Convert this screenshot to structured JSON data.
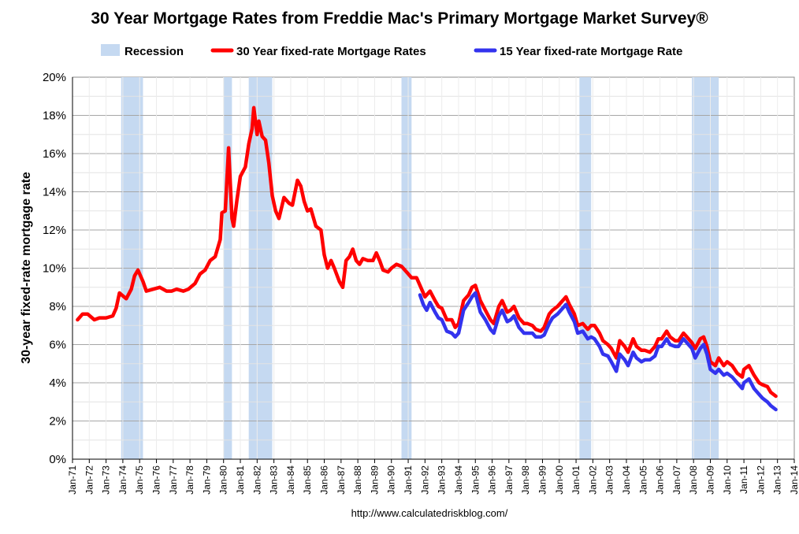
{
  "chart_data": {
    "type": "line",
    "title": "30 Year Mortgage Rates from Freddie Mac's Primary Mortgage Market Survey®",
    "ylabel": "30-year fixed-rate mortgage rate",
    "source": "http://www.calculatedriskblog.com/",
    "ylim": [
      0,
      20
    ],
    "y_ticks": [
      "0%",
      "2%",
      "4%",
      "6%",
      "8%",
      "10%",
      "12%",
      "14%",
      "16%",
      "18%",
      "20%"
    ],
    "x_range": [
      1971.0,
      2014.0
    ],
    "x_ticks": [
      "Jan-71",
      "Jan-72",
      "Jan-73",
      "Jan-74",
      "Jan-75",
      "Jan-76",
      "Jan-77",
      "Jan-78",
      "Jan-79",
      "Jan-80",
      "Jan-81",
      "Jan-82",
      "Jan-83",
      "Jan-84",
      "Jan-85",
      "Jan-86",
      "Jan-87",
      "Jan-88",
      "Jan-89",
      "Jan-90",
      "Jan-91",
      "Jan-92",
      "Jan-93",
      "Jan-94",
      "Jan-95",
      "Jan-96",
      "Jan-97",
      "Jan-98",
      "Jan-99",
      "Jan-00",
      "Jan-01",
      "Jan-02",
      "Jan-03",
      "Jan-04",
      "Jan-05",
      "Jan-06",
      "Jan-07",
      "Jan-08",
      "Jan-09",
      "Jan-10",
      "Jan-11",
      "Jan-12",
      "Jan-13",
      "Jan-14"
    ],
    "grid": true,
    "legend_position": "top",
    "legend": [
      {
        "label": "Recession",
        "color": "#c5d9f1",
        "kind": "area"
      },
      {
        "label": "30 Year fixed-rate Mortgage Rates",
        "color": "#ff0000",
        "kind": "line"
      },
      {
        "label": "15 Year fixed-rate Mortgage Rate",
        "color": "#3333ee",
        "kind": "line"
      }
    ],
    "recessions": [
      {
        "start": 1973.9,
        "end": 1975.2
      },
      {
        "start": 1980.0,
        "end": 1980.5
      },
      {
        "start": 1981.5,
        "end": 1982.9
      },
      {
        "start": 1990.6,
        "end": 1991.2
      },
      {
        "start": 2001.2,
        "end": 2001.9
      },
      {
        "start": 2007.9,
        "end": 2009.5
      }
    ],
    "series": [
      {
        "name": "30 Year fixed-rate Mortgage Rates",
        "color": "#ff0000",
        "points": [
          [
            1971.3,
            7.3
          ],
          [
            1971.6,
            7.6
          ],
          [
            1971.9,
            7.6
          ],
          [
            1972.3,
            7.3
          ],
          [
            1972.6,
            7.4
          ],
          [
            1973.0,
            7.4
          ],
          [
            1973.4,
            7.5
          ],
          [
            1973.6,
            7.9
          ],
          [
            1973.8,
            8.7
          ],
          [
            1974.2,
            8.4
          ],
          [
            1974.5,
            8.9
          ],
          [
            1974.7,
            9.6
          ],
          [
            1974.9,
            9.9
          ],
          [
            1975.2,
            9.3
          ],
          [
            1975.4,
            8.8
          ],
          [
            1975.8,
            8.9
          ],
          [
            1976.2,
            9.0
          ],
          [
            1976.6,
            8.8
          ],
          [
            1976.9,
            8.8
          ],
          [
            1977.2,
            8.9
          ],
          [
            1977.6,
            8.8
          ],
          [
            1977.9,
            8.9
          ],
          [
            1978.3,
            9.2
          ],
          [
            1978.6,
            9.7
          ],
          [
            1978.9,
            9.9
          ],
          [
            1979.2,
            10.4
          ],
          [
            1979.5,
            10.6
          ],
          [
            1979.8,
            11.5
          ],
          [
            1979.9,
            12.9
          ],
          [
            1980.1,
            13.0
          ],
          [
            1980.3,
            16.3
          ],
          [
            1980.5,
            12.6
          ],
          [
            1980.6,
            12.2
          ],
          [
            1980.8,
            13.6
          ],
          [
            1981.0,
            14.8
          ],
          [
            1981.3,
            15.3
          ],
          [
            1981.5,
            16.5
          ],
          [
            1981.7,
            17.3
          ],
          [
            1981.8,
            18.4
          ],
          [
            1982.0,
            17.0
          ],
          [
            1982.1,
            17.7
          ],
          [
            1982.3,
            16.9
          ],
          [
            1982.5,
            16.7
          ],
          [
            1982.7,
            15.5
          ],
          [
            1982.9,
            13.8
          ],
          [
            1983.1,
            13.0
          ],
          [
            1983.3,
            12.6
          ],
          [
            1983.6,
            13.7
          ],
          [
            1983.9,
            13.4
          ],
          [
            1984.1,
            13.3
          ],
          [
            1984.4,
            14.6
          ],
          [
            1984.6,
            14.3
          ],
          [
            1984.8,
            13.5
          ],
          [
            1985.0,
            13.0
          ],
          [
            1985.2,
            13.1
          ],
          [
            1985.5,
            12.2
          ],
          [
            1985.8,
            12.0
          ],
          [
            1986.0,
            10.7
          ],
          [
            1986.2,
            10.0
          ],
          [
            1986.4,
            10.4
          ],
          [
            1986.6,
            10.0
          ],
          [
            1986.9,
            9.3
          ],
          [
            1987.1,
            9.0
          ],
          [
            1987.3,
            10.4
          ],
          [
            1987.5,
            10.6
          ],
          [
            1987.7,
            11.0
          ],
          [
            1987.9,
            10.4
          ],
          [
            1988.1,
            10.2
          ],
          [
            1988.3,
            10.5
          ],
          [
            1988.6,
            10.4
          ],
          [
            1988.9,
            10.4
          ],
          [
            1989.1,
            10.8
          ],
          [
            1989.3,
            10.4
          ],
          [
            1989.5,
            9.9
          ],
          [
            1989.8,
            9.8
          ],
          [
            1990.0,
            10.0
          ],
          [
            1990.3,
            10.2
          ],
          [
            1990.6,
            10.1
          ],
          [
            1990.9,
            9.8
          ],
          [
            1991.2,
            9.5
          ],
          [
            1991.5,
            9.5
          ],
          [
            1991.8,
            8.9
          ],
          [
            1992.0,
            8.5
          ],
          [
            1992.3,
            8.8
          ],
          [
            1992.6,
            8.3
          ],
          [
            1992.8,
            8.0
          ],
          [
            1993.0,
            7.9
          ],
          [
            1993.3,
            7.3
          ],
          [
            1993.6,
            7.3
          ],
          [
            1993.8,
            6.9
          ],
          [
            1994.0,
            7.1
          ],
          [
            1994.3,
            8.3
          ],
          [
            1994.6,
            8.6
          ],
          [
            1994.8,
            9.0
          ],
          [
            1995.0,
            9.1
          ],
          [
            1995.3,
            8.3
          ],
          [
            1995.6,
            7.8
          ],
          [
            1995.9,
            7.3
          ],
          [
            1996.1,
            7.1
          ],
          [
            1996.4,
            8.0
          ],
          [
            1996.6,
            8.3
          ],
          [
            1996.9,
            7.7
          ],
          [
            1997.1,
            7.8
          ],
          [
            1997.3,
            8.0
          ],
          [
            1997.6,
            7.4
          ],
          [
            1997.9,
            7.1
          ],
          [
            1998.1,
            7.1
          ],
          [
            1998.4,
            7.0
          ],
          [
            1998.6,
            6.8
          ],
          [
            1998.9,
            6.7
          ],
          [
            1999.1,
            6.9
          ],
          [
            1999.4,
            7.6
          ],
          [
            1999.6,
            7.8
          ],
          [
            1999.9,
            8.0
          ],
          [
            2000.1,
            8.2
          ],
          [
            2000.4,
            8.5
          ],
          [
            2000.6,
            8.1
          ],
          [
            2000.9,
            7.6
          ],
          [
            2001.1,
            7.0
          ],
          [
            2001.4,
            7.1
          ],
          [
            2001.7,
            6.8
          ],
          [
            2001.9,
            7.0
          ],
          [
            2002.1,
            7.0
          ],
          [
            2002.4,
            6.6
          ],
          [
            2002.6,
            6.2
          ],
          [
            2002.9,
            6.0
          ],
          [
            2003.1,
            5.8
          ],
          [
            2003.4,
            5.3
          ],
          [
            2003.6,
            6.2
          ],
          [
            2003.9,
            5.9
          ],
          [
            2004.1,
            5.6
          ],
          [
            2004.4,
            6.3
          ],
          [
            2004.6,
            5.9
          ],
          [
            2004.9,
            5.7
          ],
          [
            2005.1,
            5.7
          ],
          [
            2005.4,
            5.6
          ],
          [
            2005.7,
            5.9
          ],
          [
            2005.9,
            6.3
          ],
          [
            2006.1,
            6.3
          ],
          [
            2006.4,
            6.7
          ],
          [
            2006.6,
            6.4
          ],
          [
            2006.9,
            6.2
          ],
          [
            2007.1,
            6.2
          ],
          [
            2007.4,
            6.6
          ],
          [
            2007.6,
            6.4
          ],
          [
            2007.9,
            6.1
          ],
          [
            2008.1,
            5.8
          ],
          [
            2008.4,
            6.3
          ],
          [
            2008.6,
            6.4
          ],
          [
            2008.8,
            5.9
          ],
          [
            2009.0,
            5.1
          ],
          [
            2009.3,
            4.9
          ],
          [
            2009.5,
            5.3
          ],
          [
            2009.8,
            4.9
          ],
          [
            2010.0,
            5.1
          ],
          [
            2010.3,
            4.9
          ],
          [
            2010.6,
            4.5
          ],
          [
            2010.9,
            4.3
          ],
          [
            2011.0,
            4.7
          ],
          [
            2011.3,
            4.9
          ],
          [
            2011.6,
            4.4
          ],
          [
            2011.9,
            4.0
          ],
          [
            2012.1,
            3.9
          ],
          [
            2012.4,
            3.8
          ],
          [
            2012.6,
            3.5
          ],
          [
            2012.9,
            3.3
          ]
        ]
      },
      {
        "name": "15 Year fixed-rate Mortgage Rate",
        "color": "#3333ee",
        "points": [
          [
            1991.7,
            8.6
          ],
          [
            1991.9,
            8.1
          ],
          [
            1992.1,
            7.8
          ],
          [
            1992.3,
            8.2
          ],
          [
            1992.6,
            7.7
          ],
          [
            1992.8,
            7.4
          ],
          [
            1993.0,
            7.3
          ],
          [
            1993.3,
            6.7
          ],
          [
            1993.6,
            6.6
          ],
          [
            1993.8,
            6.4
          ],
          [
            1994.0,
            6.6
          ],
          [
            1994.3,
            7.8
          ],
          [
            1994.6,
            8.2
          ],
          [
            1994.8,
            8.5
          ],
          [
            1995.0,
            8.7
          ],
          [
            1995.3,
            7.7
          ],
          [
            1995.6,
            7.3
          ],
          [
            1995.9,
            6.8
          ],
          [
            1996.1,
            6.6
          ],
          [
            1996.4,
            7.5
          ],
          [
            1996.6,
            7.8
          ],
          [
            1996.9,
            7.2
          ],
          [
            1997.1,
            7.3
          ],
          [
            1997.3,
            7.5
          ],
          [
            1997.6,
            6.9
          ],
          [
            1997.9,
            6.6
          ],
          [
            1998.1,
            6.6
          ],
          [
            1998.4,
            6.6
          ],
          [
            1998.6,
            6.4
          ],
          [
            1998.9,
            6.4
          ],
          [
            1999.1,
            6.5
          ],
          [
            1999.4,
            7.1
          ],
          [
            1999.6,
            7.4
          ],
          [
            1999.9,
            7.6
          ],
          [
            2000.1,
            7.8
          ],
          [
            2000.4,
            8.1
          ],
          [
            2000.6,
            7.7
          ],
          [
            2000.9,
            7.2
          ],
          [
            2001.1,
            6.6
          ],
          [
            2001.4,
            6.7
          ],
          [
            2001.7,
            6.3
          ],
          [
            2001.9,
            6.4
          ],
          [
            2002.1,
            6.3
          ],
          [
            2002.4,
            5.9
          ],
          [
            2002.6,
            5.5
          ],
          [
            2002.9,
            5.4
          ],
          [
            2003.1,
            5.1
          ],
          [
            2003.4,
            4.6
          ],
          [
            2003.6,
            5.5
          ],
          [
            2003.9,
            5.2
          ],
          [
            2004.1,
            4.9
          ],
          [
            2004.4,
            5.6
          ],
          [
            2004.6,
            5.3
          ],
          [
            2004.9,
            5.1
          ],
          [
            2005.1,
            5.2
          ],
          [
            2005.4,
            5.2
          ],
          [
            2005.7,
            5.4
          ],
          [
            2005.9,
            5.9
          ],
          [
            2006.1,
            5.9
          ],
          [
            2006.4,
            6.3
          ],
          [
            2006.6,
            6.0
          ],
          [
            2006.9,
            5.9
          ],
          [
            2007.1,
            5.9
          ],
          [
            2007.4,
            6.3
          ],
          [
            2007.6,
            6.1
          ],
          [
            2007.9,
            5.8
          ],
          [
            2008.1,
            5.3
          ],
          [
            2008.4,
            5.8
          ],
          [
            2008.6,
            6.0
          ],
          [
            2008.8,
            5.5
          ],
          [
            2009.0,
            4.7
          ],
          [
            2009.3,
            4.5
          ],
          [
            2009.5,
            4.7
          ],
          [
            2009.8,
            4.4
          ],
          [
            2010.0,
            4.5
          ],
          [
            2010.3,
            4.3
          ],
          [
            2010.6,
            4.0
          ],
          [
            2010.9,
            3.7
          ],
          [
            2011.0,
            4.0
          ],
          [
            2011.3,
            4.2
          ],
          [
            2011.6,
            3.7
          ],
          [
            2011.9,
            3.4
          ],
          [
            2012.1,
            3.2
          ],
          [
            2012.4,
            3.0
          ],
          [
            2012.6,
            2.8
          ],
          [
            2012.9,
            2.6
          ]
        ]
      }
    ]
  }
}
